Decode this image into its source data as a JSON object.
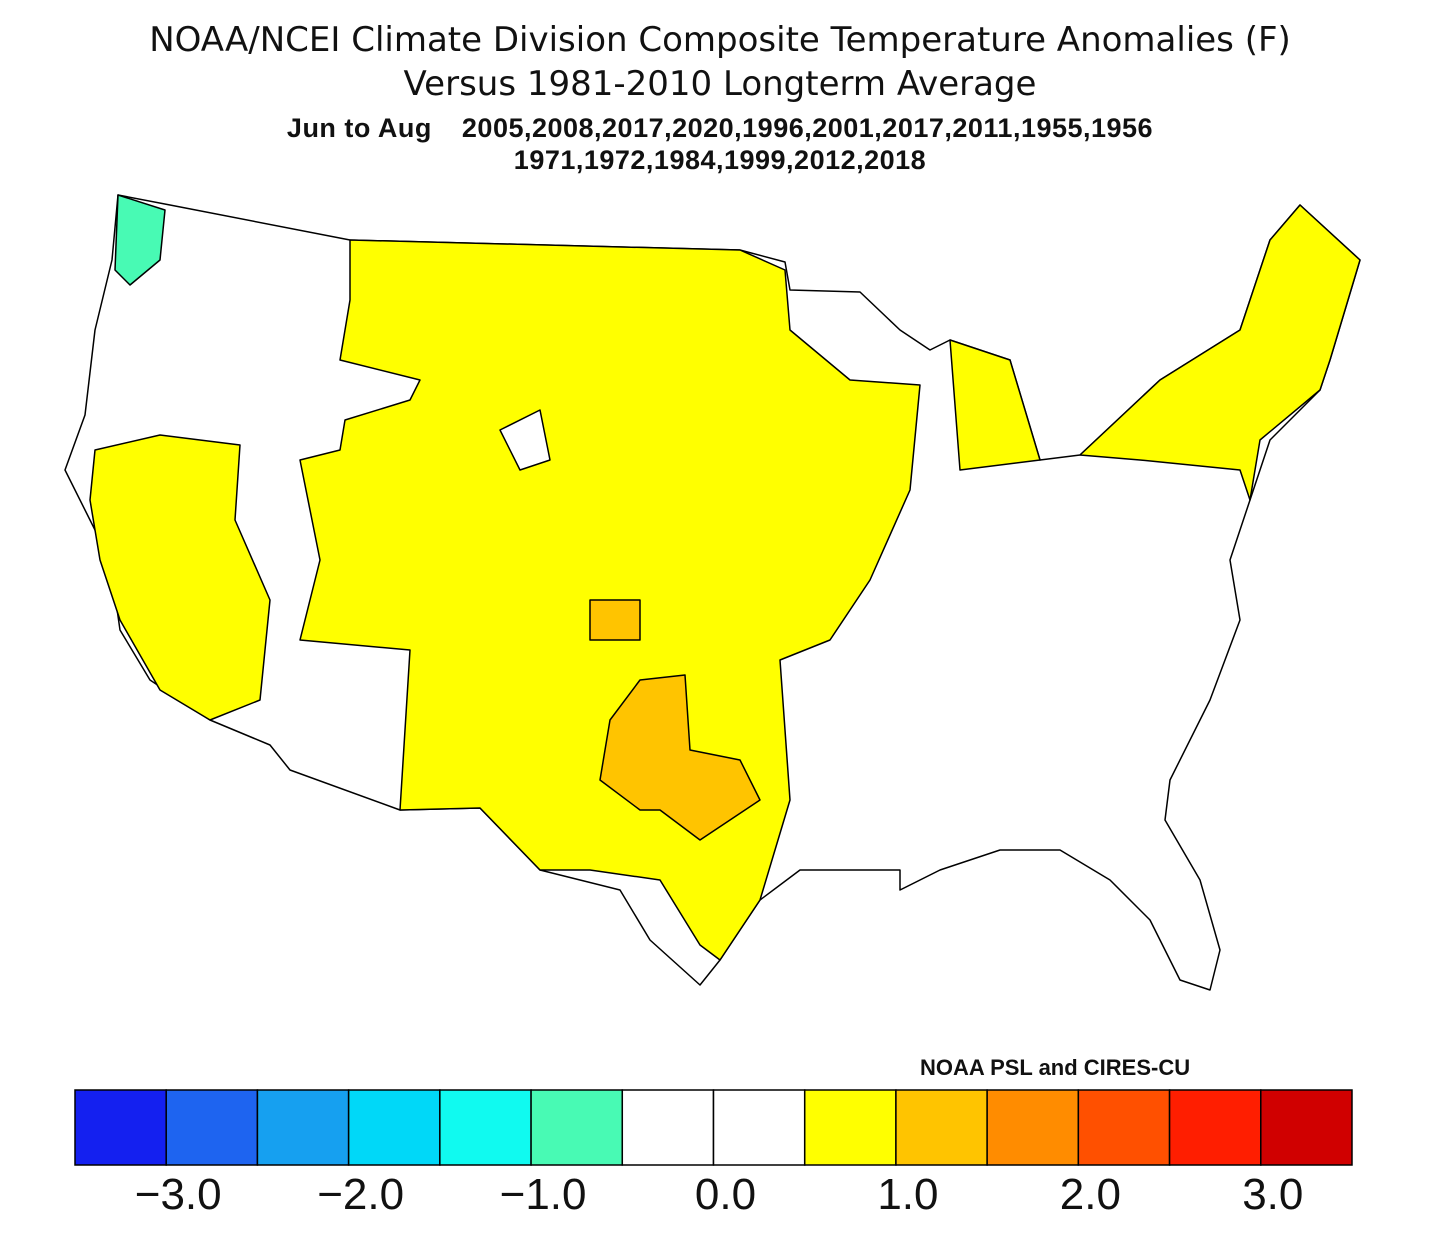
{
  "title": {
    "line1": "NOAA/NCEI Climate Division Composite Temperature Anomalies (F)",
    "line2": "Versus 1981-2010 Longterm Average",
    "period": "Jun to Aug",
    "years_line1": "2005,2008,2017,2020,1996,2001,2017,2011,1955,1956",
    "years_line2": "1971,1972,1984,1999,2012,2018"
  },
  "credit": "NOAA PSL and CIRES-CU",
  "colorbar": {
    "colors": [
      "#1420f0",
      "#1e64f0",
      "#16a0f0",
      "#00d8f8",
      "#10faf0",
      "#48fab4",
      "#ffffff",
      "#ffffff",
      "#ffff00",
      "#ffc400",
      "#ff8c00",
      "#ff5000",
      "#ff1e00",
      "#d00000"
    ],
    "levels": [
      -3.0,
      -2.5,
      -2.0,
      -1.5,
      -1.0,
      -0.5,
      0.0,
      0.5,
      1.0,
      1.5,
      2.0,
      2.5,
      3.0
    ],
    "tick_labels": [
      "−3.0",
      "−2.0",
      "−1.0",
      "0.0",
      "1.0",
      "2.0",
      "3.0"
    ]
  },
  "map_legend": {
    "green": "#48fab4",
    "yellow": "#ffff00",
    "orange": "#ffc400"
  }
}
